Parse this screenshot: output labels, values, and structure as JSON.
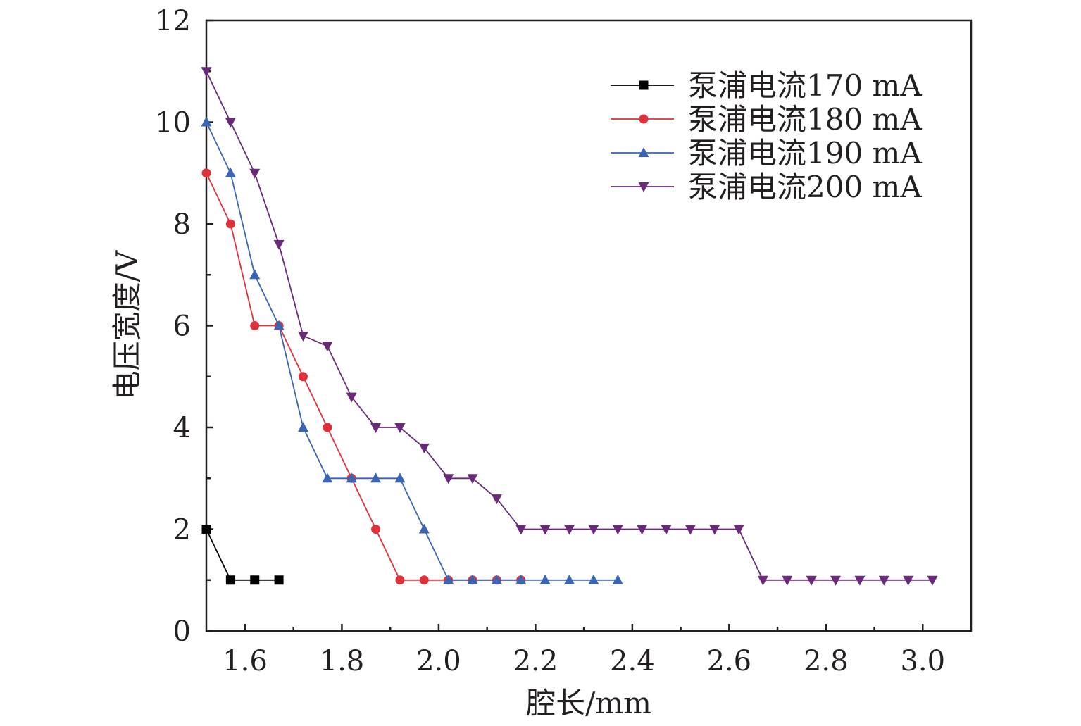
{
  "chart_data": {
    "type": "line",
    "title": "",
    "xlabel": "腔长/mm",
    "ylabel": "电压宽度/V",
    "xlim": [
      1.52,
      3.1
    ],
    "ylim": [
      0,
      12
    ],
    "x_ticks": [
      "1.6",
      "1.8",
      "2.0",
      "2.2",
      "2.4",
      "2.6",
      "2.8",
      "3.0"
    ],
    "y_ticks": [
      "0",
      "2",
      "4",
      "6",
      "8",
      "10",
      "12"
    ],
    "legend_position": "top-right",
    "grid": false,
    "series": [
      {
        "name": "泵浦电流170 mA",
        "color": "#000000",
        "marker": "square",
        "x": [
          1.52,
          1.57,
          1.62,
          1.67
        ],
        "y": [
          2,
          1,
          1,
          1
        ]
      },
      {
        "name": "泵浦电流180 mA",
        "color": "#e0303a",
        "marker": "circle",
        "x": [
          1.52,
          1.57,
          1.62,
          1.67,
          1.72,
          1.77,
          1.82,
          1.87,
          1.92,
          1.97,
          2.02,
          2.07,
          2.12,
          2.17
        ],
        "y": [
          9,
          8,
          6,
          6,
          5,
          4,
          3,
          2,
          1,
          1,
          1,
          1,
          1,
          1
        ]
      },
      {
        "name": "泵浦电流190 mA",
        "color": "#3a64b4",
        "marker": "triangle-up",
        "x": [
          1.52,
          1.57,
          1.62,
          1.67,
          1.72,
          1.77,
          1.82,
          1.87,
          1.92,
          1.97,
          2.02,
          2.07,
          2.12,
          2.17,
          2.22,
          2.27,
          2.32,
          2.37
        ],
        "y": [
          10,
          9,
          7,
          6,
          4,
          3,
          3,
          3,
          3,
          2,
          1,
          1,
          1,
          1,
          1,
          1,
          1,
          1
        ]
      },
      {
        "name": "泵浦电流200 mA",
        "color": "#6a2a7a",
        "marker": "triangle-down",
        "x": [
          1.52,
          1.57,
          1.62,
          1.67,
          1.72,
          1.77,
          1.82,
          1.87,
          1.92,
          1.97,
          2.02,
          2.07,
          2.12,
          2.17,
          2.22,
          2.27,
          2.32,
          2.37,
          2.42,
          2.47,
          2.52,
          2.57,
          2.62,
          2.67,
          2.72,
          2.77,
          2.82,
          2.87,
          2.92,
          2.97,
          3.02
        ],
        "y": [
          11,
          10,
          9,
          7.6,
          5.8,
          5.6,
          4.6,
          4,
          4,
          3.6,
          3,
          3,
          2.6,
          2,
          2,
          2,
          2,
          2,
          2,
          2,
          2,
          2,
          2,
          1,
          1,
          1,
          1,
          1,
          1,
          1,
          1
        ]
      }
    ]
  }
}
